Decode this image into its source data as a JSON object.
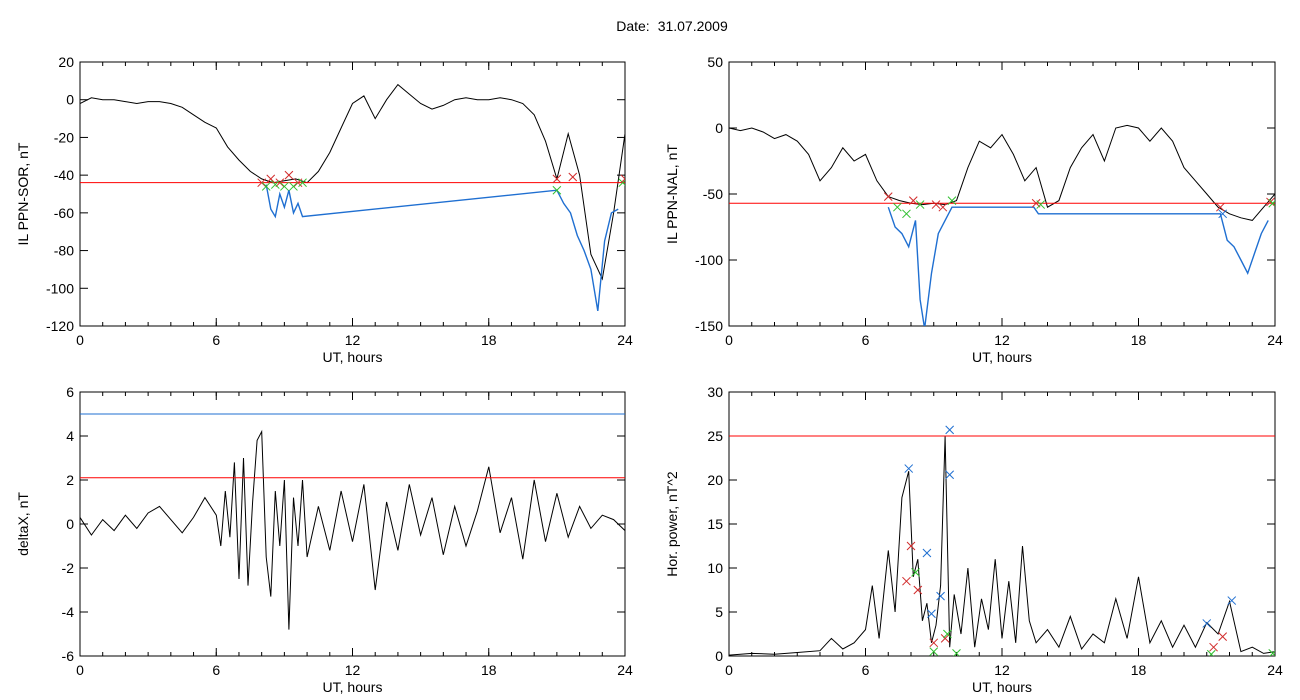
{
  "header": {
    "date_label": "Date:",
    "date_value": "31.07.2009"
  },
  "colors": {
    "signal": "#000000",
    "threshold": "#ff0000",
    "upper_threshold": "#1f6fd1",
    "substorm_trace": "#1f6fd1",
    "marker_red": "#d12a2a",
    "marker_green": "#2fbf2f",
    "marker_blue": "#1f6fd1"
  },
  "chart_data": [
    {
      "type": "line",
      "ylabel": "IL PPN-SOR, nT",
      "xlabel": "UT, hours",
      "xlim": [
        0,
        24
      ],
      "ylim": [
        -120,
        20
      ],
      "xticks": [
        "0",
        "6",
        "12",
        "18",
        "24"
      ],
      "yticks": [
        "20",
        "0",
        "-20",
        "-40",
        "-60",
        "-80",
        "-100",
        "-120"
      ],
      "threshold": -44,
      "series": [
        {
          "name": "",
          "color": "#000000",
          "x": [
            0,
            0.5,
            1,
            1.5,
            2,
            2.5,
            3,
            3.5,
            4,
            4.5,
            5,
            5.5,
            6,
            6.5,
            7,
            7.5,
            8,
            8.5,
            9,
            9.5,
            10,
            10.5,
            11,
            11.5,
            12,
            12.5,
            13,
            13.5,
            14,
            14.5,
            15,
            15.5,
            16,
            16.5,
            17,
            17.5,
            18,
            18.5,
            19,
            19.5,
            20,
            20.5,
            21,
            21.5,
            22,
            22.5,
            23,
            23.5,
            24
          ],
          "y": [
            -2,
            1,
            0,
            0,
            -1,
            -2,
            -1,
            -1,
            -2,
            -4,
            -8,
            -12,
            -15,
            -25,
            -32,
            -38,
            -42,
            -44,
            -43,
            -42,
            -44,
            -38,
            -28,
            -15,
            -2,
            2,
            -10,
            0,
            8,
            3,
            -2,
            -5,
            -3,
            0,
            1,
            0,
            0,
            1,
            0,
            -2,
            -8,
            -22,
            -42,
            -18,
            -40,
            -82,
            -95,
            -60,
            -18
          ]
        },
        {
          "name": "",
          "color": "#1f6fd1",
          "x": [
            8.2,
            8.4,
            8.6,
            8.8,
            9.0,
            9.2,
            9.4,
            9.6,
            9.8,
            21.0,
            21.3,
            21.6,
            21.9,
            22.2,
            22.5,
            22.8,
            23.1,
            23.4,
            23.7
          ],
          "y": [
            -45,
            -58,
            -62,
            -50,
            -57,
            -48,
            -60,
            -55,
            -62,
            -48,
            -55,
            -60,
            -72,
            -80,
            -90,
            -112,
            -75,
            -60,
            -58
          ]
        }
      ]
    },
    {
      "type": "line",
      "ylabel": "IL PPN-NAL, nT",
      "xlabel": "UT, hours",
      "xlim": [
        0,
        24
      ],
      "ylim": [
        -150,
        50
      ],
      "xticks": [
        "0",
        "6",
        "12",
        "18",
        "24"
      ],
      "yticks": [
        "50",
        "0",
        "-50",
        "-100",
        "-150"
      ],
      "threshold": -57,
      "series": [
        {
          "name": "",
          "color": "#000000",
          "x": [
            0,
            0.5,
            1,
            1.5,
            2,
            2.5,
            3,
            3.5,
            4,
            4.5,
            5,
            5.5,
            6,
            6.5,
            7,
            7.5,
            8,
            8.5,
            9,
            9.5,
            10,
            10.5,
            11,
            11.5,
            12,
            12.5,
            13,
            13.5,
            14,
            14.5,
            15,
            15.5,
            16,
            16.5,
            17,
            17.5,
            18,
            18.5,
            19,
            19.5,
            20,
            20.5,
            21,
            21.5,
            22,
            22.5,
            23,
            23.5,
            24
          ],
          "y": [
            0,
            -2,
            0,
            -3,
            -8,
            -5,
            -10,
            -20,
            -40,
            -30,
            -15,
            -25,
            -20,
            -40,
            -52,
            -55,
            -57,
            -58,
            -57,
            -58,
            -55,
            -30,
            -10,
            -15,
            -5,
            -20,
            -40,
            -30,
            -60,
            -55,
            -30,
            -15,
            -5,
            -25,
            0,
            2,
            0,
            -10,
            0,
            -10,
            -30,
            -40,
            -50,
            -60,
            -65,
            -68,
            -70,
            -60,
            -50
          ]
        },
        {
          "name": "",
          "color": "#1f6fd1",
          "x": [
            7.0,
            7.3,
            7.6,
            7.9,
            8.2,
            8.4,
            8.6,
            8.9,
            9.2,
            9.5,
            9.8,
            13.4,
            13.6,
            21.6,
            21.9,
            22.2,
            22.5,
            22.8,
            23.1,
            23.4,
            23.7
          ],
          "y": [
            -60,
            -75,
            -80,
            -90,
            -70,
            -130,
            -152,
            -110,
            -80,
            -70,
            -60,
            -60,
            -65,
            -65,
            -85,
            -90,
            -100,
            -110,
            -95,
            -80,
            -70
          ]
        }
      ]
    },
    {
      "type": "line",
      "ylabel": "deltaX, nT",
      "xlabel": "UT, hours",
      "xlim": [
        0,
        24
      ],
      "ylim": [
        -6,
        6
      ],
      "xticks": [
        "0",
        "6",
        "12",
        "18",
        "24"
      ],
      "yticks": [
        "6",
        "4",
        "2",
        "0",
        "-2",
        "-4",
        "-6"
      ],
      "threshold": 2.1,
      "upper_threshold": 5.0,
      "series": [
        {
          "name": "",
          "color": "#000000",
          "x": [
            0,
            0.5,
            1,
            1.5,
            2,
            2.5,
            3,
            3.5,
            4,
            4.5,
            5,
            5.5,
            6,
            6.2,
            6.4,
            6.6,
            6.8,
            7.0,
            7.2,
            7.4,
            7.6,
            7.8,
            8.0,
            8.2,
            8.4,
            8.6,
            8.8,
            9.0,
            9.2,
            9.4,
            9.6,
            9.8,
            10.0,
            10.5,
            11,
            11.5,
            12,
            12.5,
            13,
            13.5,
            14,
            14.5,
            15,
            15.5,
            16,
            16.5,
            17,
            17.5,
            18,
            18.5,
            19,
            19.5,
            20,
            20.5,
            21,
            21.5,
            22,
            22.5,
            23,
            23.5,
            24
          ],
          "y": [
            0.3,
            -0.5,
            0.2,
            -0.3,
            0.4,
            -0.2,
            0.5,
            0.8,
            0.2,
            -0.4,
            0.3,
            1.2,
            0.4,
            -1.0,
            1.5,
            -0.6,
            2.8,
            -2.5,
            3.0,
            -2.8,
            1.0,
            3.8,
            4.2,
            -1.5,
            -3.3,
            1.5,
            -1.0,
            2.0,
            -4.8,
            1.2,
            -1.0,
            2.0,
            -1.5,
            0.8,
            -1.2,
            1.5,
            -0.8,
            1.8,
            -3.0,
            1.0,
            -1.2,
            1.8,
            -0.5,
            1.2,
            -1.4,
            0.8,
            -1.0,
            0.6,
            2.6,
            -0.4,
            1.2,
            -1.6,
            2.0,
            -0.8,
            1.4,
            -0.6,
            0.8,
            -0.2,
            0.4,
            0.2,
            -0.3
          ]
        }
      ]
    },
    {
      "type": "line",
      "ylabel": "Hor. power, nT^2",
      "xlabel": "UT, hours",
      "xlim": [
        0,
        24
      ],
      "ylim": [
        0,
        30
      ],
      "xticks": [
        "0",
        "6",
        "12",
        "18",
        "24"
      ],
      "yticks": [
        "30",
        "25",
        "20",
        "15",
        "10",
        "5",
        "0"
      ],
      "threshold": 25,
      "series": [
        {
          "name": "",
          "color": "#000000",
          "x": [
            0,
            1,
            2,
            3,
            4,
            4.5,
            5,
            5.5,
            6,
            6.3,
            6.6,
            7.0,
            7.3,
            7.6,
            7.9,
            8.1,
            8.3,
            8.5,
            8.7,
            8.9,
            9.1,
            9.3,
            9.5,
            9.7,
            9.9,
            10.2,
            10.5,
            10.8,
            11.1,
            11.4,
            11.7,
            12.0,
            12.3,
            12.6,
            12.9,
            13.2,
            13.5,
            14,
            14.5,
            15,
            15.5,
            16,
            16.5,
            17,
            17.5,
            18,
            18.5,
            19,
            19.5,
            20,
            20.5,
            21,
            21.5,
            22,
            22.5,
            23,
            23.5,
            24
          ],
          "y": [
            0.1,
            0.3,
            0.2,
            0.4,
            0.6,
            2.0,
            0.8,
            1.5,
            3.0,
            8.0,
            2.0,
            12.0,
            5.0,
            18.0,
            21.0,
            9.0,
            11.0,
            4.0,
            6.0,
            1.5,
            3.5,
            8.0,
            25.0,
            1.0,
            7.0,
            2.5,
            10.0,
            1.0,
            6.5,
            3.0,
            11.0,
            2.0,
            8.5,
            1.5,
            12.5,
            4.0,
            1.5,
            3.0,
            1.0,
            4.5,
            0.8,
            2.5,
            1.5,
            6.5,
            2.0,
            9.0,
            1.5,
            4.0,
            1.0,
            3.5,
            1.0,
            3.8,
            2.5,
            6.2,
            0.5,
            1.0,
            0.3,
            0.5
          ]
        }
      ]
    }
  ]
}
